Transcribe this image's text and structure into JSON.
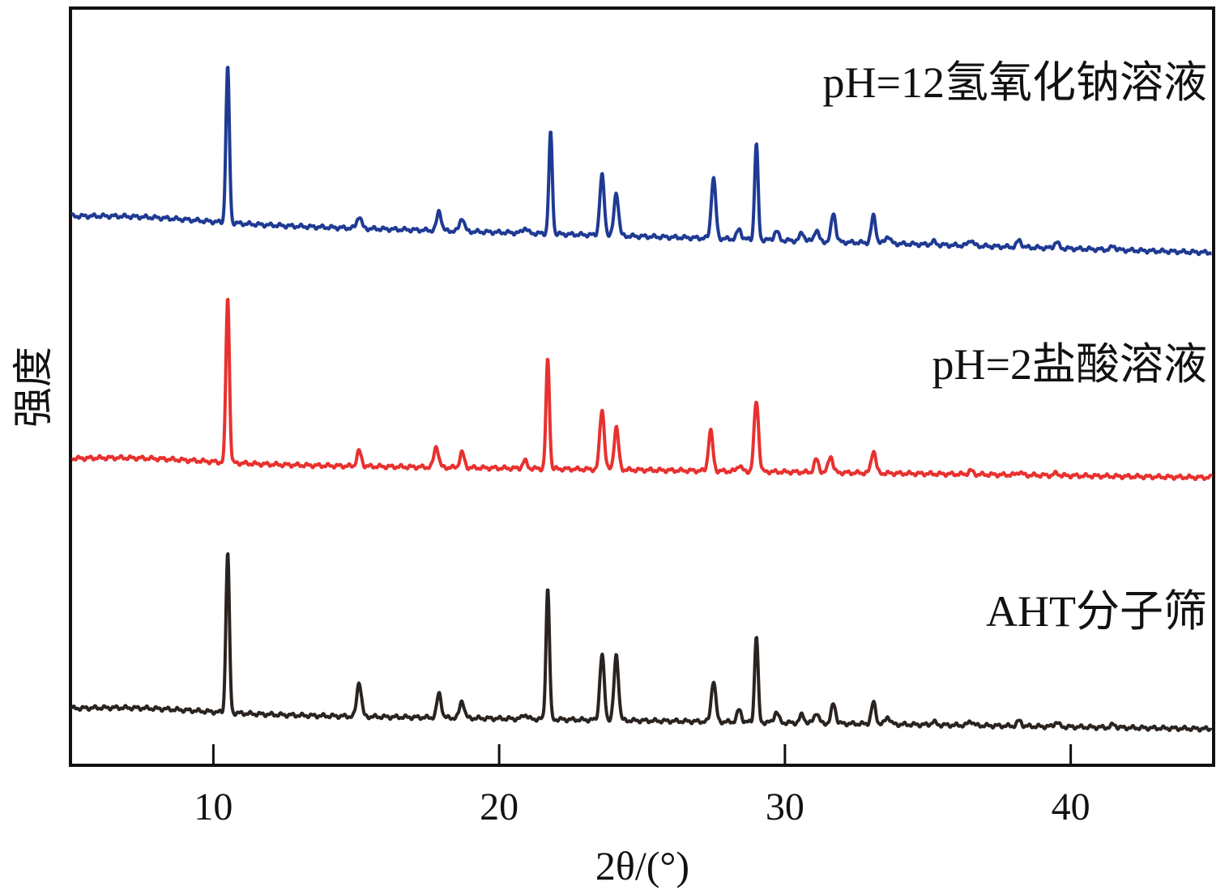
{
  "chart_data": {
    "type": "line",
    "title": "",
    "xlabel": "2θ/(°)",
    "ylabel": "强度",
    "xlim": [
      5,
      45
    ],
    "ylim": [
      0,
      100
    ],
    "x_ticks": [
      10,
      20,
      30,
      40
    ],
    "y_ticks_shown": false,
    "grid": false,
    "legend": "none; series labels printed above each curve on the right",
    "series": [
      {
        "name": "pH=12氢氧化钠溶液",
        "color": "#1f3a93",
        "offset": 72,
        "peaks": [
          [
            10.5,
            20.5
          ],
          [
            15.1,
            1.6
          ],
          [
            17.9,
            2.6
          ],
          [
            18.7,
            1.8
          ],
          [
            20.9,
            0.7
          ],
          [
            21.8,
            13.3
          ],
          [
            23.6,
            7.9
          ],
          [
            24.1,
            5.7
          ],
          [
            27.5,
            8.0
          ],
          [
            28.4,
            1.3
          ],
          [
            29.0,
            12.6
          ],
          [
            29.7,
            1.2
          ],
          [
            30.6,
            1.1
          ],
          [
            31.1,
            1.5
          ],
          [
            31.7,
            3.8
          ],
          [
            33.1,
            3.6
          ],
          [
            33.6,
            1.0
          ],
          [
            35.2,
            0.4
          ],
          [
            36.5,
            0.8
          ],
          [
            38.2,
            0.9
          ],
          [
            39.5,
            0.8
          ],
          [
            41.5,
            0.5
          ]
        ]
      },
      {
        "name": "pH=2盐酸溶液",
        "color": "#e8312f",
        "offset": 40,
        "peaks": [
          [
            10.5,
            21.9
          ],
          [
            15.1,
            2.0
          ],
          [
            17.8,
            2.8
          ],
          [
            18.7,
            2.0
          ],
          [
            20.9,
            1.0
          ],
          [
            21.7,
            14.4
          ],
          [
            23.6,
            8.0
          ],
          [
            24.1,
            5.6
          ],
          [
            27.4,
            5.3
          ],
          [
            28.4,
            0.8
          ],
          [
            29.0,
            9.3
          ],
          [
            31.1,
            1.7
          ],
          [
            31.6,
            2.2
          ],
          [
            33.1,
            3.0
          ],
          [
            36.5,
            0.5
          ],
          [
            38.2,
            0.4
          ],
          [
            39.5,
            0.3
          ]
        ]
      },
      {
        "name": "AHT分子筛",
        "color": "#2a2421",
        "offset": 7,
        "peaks": [
          [
            10.5,
            21.1
          ],
          [
            15.1,
            4.6
          ],
          [
            17.9,
            3.2
          ],
          [
            18.7,
            2.3
          ],
          [
            20.9,
            0.6
          ],
          [
            21.7,
            17.3
          ],
          [
            23.6,
            8.6
          ],
          [
            24.1,
            8.6
          ],
          [
            27.5,
            5.4
          ],
          [
            28.4,
            1.6
          ],
          [
            29.0,
            11.4
          ],
          [
            29.7,
            1.4
          ],
          [
            30.6,
            1.1
          ],
          [
            31.1,
            1.4
          ],
          [
            31.7,
            2.6
          ],
          [
            33.1,
            2.8
          ],
          [
            33.6,
            1.0
          ],
          [
            35.2,
            0.4
          ],
          [
            36.5,
            0.6
          ],
          [
            38.2,
            0.7
          ],
          [
            39.5,
            0.6
          ],
          [
            41.5,
            0.4
          ]
        ]
      }
    ]
  }
}
